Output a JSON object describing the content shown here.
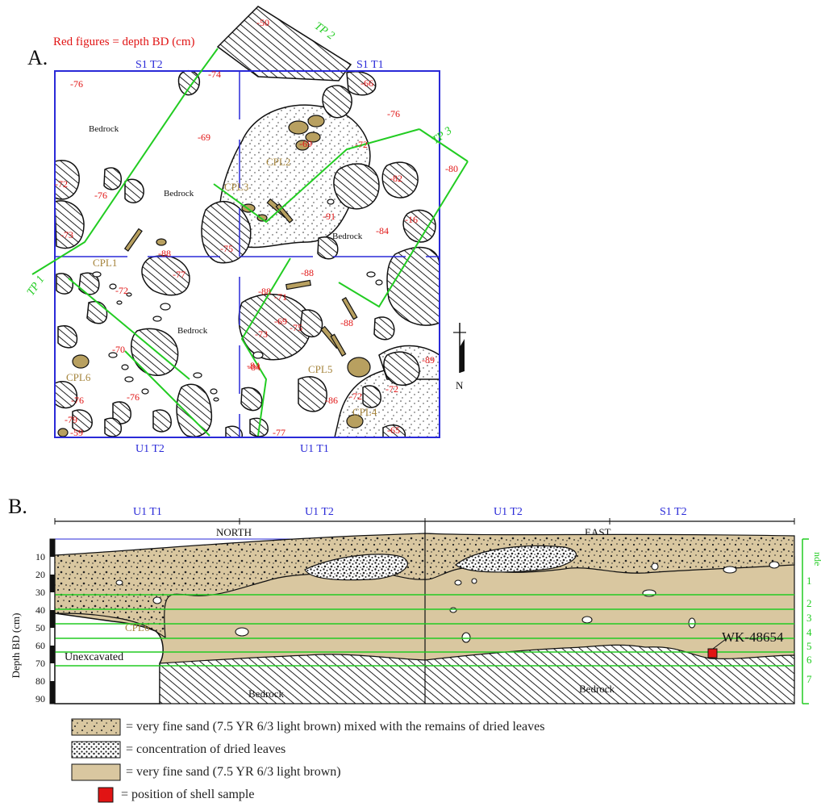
{
  "colors": {
    "grid_blue": "#2a2ad8",
    "green": "#22cc22",
    "red": "#e11414",
    "sand": "#d9c7a0",
    "brown_label": "#a5843b",
    "bone": "#b8a060",
    "ink": "#111111"
  },
  "panel_a": {
    "label": "A.",
    "legend_note": "Red figures = depth BD (cm)",
    "grid_labels": [
      "S1 T2",
      "S1 T1",
      "U1 T2",
      "U1 T1"
    ],
    "test_pits": [
      "TP 1",
      "TP 2",
      "TP 3"
    ],
    "bedrock_labels": [
      "Bedrock",
      "Bedrock",
      "Bedrock",
      "Bedrock"
    ],
    "features": [
      "CPL1",
      "CPL2",
      "CPL3",
      "CPL4",
      "CPL5",
      "CPL6"
    ],
    "depths": [
      "-50",
      "-76",
      "-74",
      "-66",
      "-69",
      "-76",
      "-72",
      "-80",
      "-82",
      "-69",
      "-91",
      "-84",
      "-16",
      "-72",
      "-76",
      "-73",
      "-88",
      "-72",
      "-77",
      "-75",
      "-70",
      "-84",
      "-88",
      "-88",
      "-71",
      "-73",
      "-69",
      "-75",
      "-89",
      "-86",
      "-88",
      "-72",
      "-76",
      "-76",
      "-79",
      "-59",
      "-72",
      "-65",
      "-77",
      "-84"
    ],
    "north_label": "N"
  },
  "panel_b": {
    "label": "B.",
    "top_labels": [
      "U1 T1",
      "U1 T2",
      "U1 T2",
      "S1 T2"
    ],
    "sections": [
      "NORTH",
      "EAST"
    ],
    "y_axis_label": "Depth BD (cm)",
    "y_ticks": [
      "10",
      "20",
      "30",
      "40",
      "50",
      "60",
      "70",
      "80",
      "90"
    ],
    "layers": [
      "1",
      "2",
      "3",
      "4",
      "5",
      "6",
      "7"
    ],
    "layer_axis_label": "nde",
    "unexcavated_label": "Unexcavated",
    "bedrock_labels": [
      "Bedrock",
      "Bedrock"
    ],
    "feature_label": "CPL6",
    "sample_label": "WK-48654"
  },
  "legend": [
    {
      "key": "sand_leaves",
      "text": "= very fine sand (7.5 YR 6/3 light brown) mixed with the remains of dried leaves"
    },
    {
      "key": "leaves",
      "text": "= concentration of dried leaves"
    },
    {
      "key": "sand",
      "text": "= very fine sand (7.5 YR 6/3 light brown)"
    },
    {
      "key": "shell",
      "text": "= position of shell sample"
    }
  ]
}
